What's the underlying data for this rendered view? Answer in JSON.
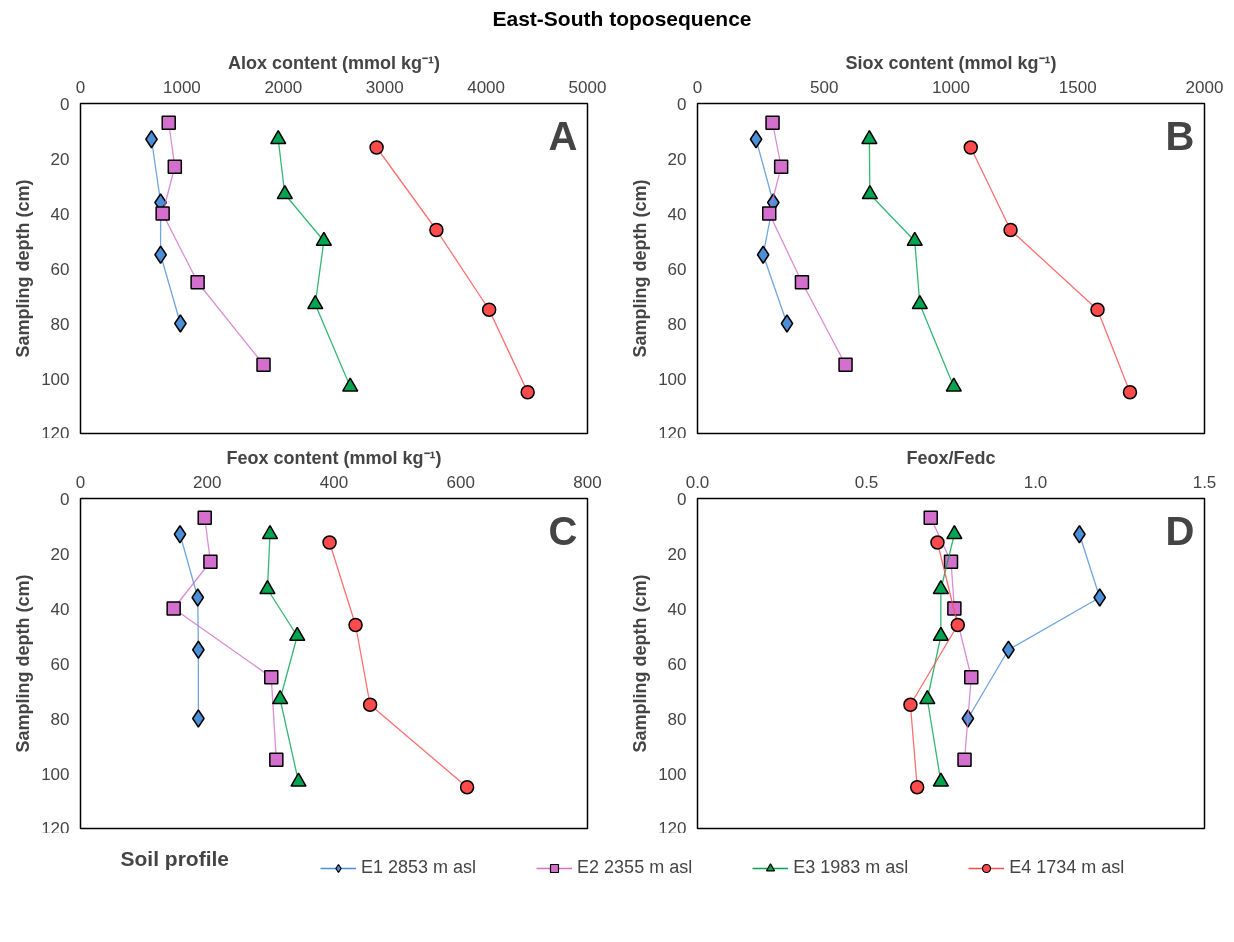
{
  "chart_data": [
    {
      "type": "line",
      "title": "East-South toposequence",
      "xlabel": "Alox content (mmol kg⁻¹)",
      "ylabel": "Sampling depth (cm)",
      "annotations": [
        "A"
      ],
      "legend": "bottom",
      "legend_title": "Soil profile",
      "xlim": [
        0,
        5000
      ],
      "xticks": [
        0,
        1000,
        2000,
        3000,
        4000,
        5000
      ],
      "ylim": [
        120,
        0
      ],
      "yticks": [
        0,
        20,
        40,
        60,
        80,
        100,
        120
      ],
      "grid": false,
      "series": [
        {
          "name": "E1 2853 m asl",
          "color": "#4a8fd8",
          "marker": "diamond",
          "x": [
            700,
            790,
            790,
            985
          ],
          "values": [
            13,
            36,
            55,
            80
          ]
        },
        {
          "name": "E2 2355 m asl",
          "color": "#d36fcc",
          "marker": "square",
          "x": [
            870,
            930,
            810,
            1155,
            1805
          ],
          "values": [
            7,
            23,
            40,
            65,
            95
          ]
        },
        {
          "name": "E3 1983 m asl",
          "color": "#00a550",
          "marker": "triangle",
          "x": [
            1950,
            2015,
            2400,
            2315,
            2660
          ],
          "values": [
            13,
            33,
            50,
            73,
            103
          ]
        },
        {
          "name": "E4 1734 m asl",
          "color": "#ff4b4b",
          "marker": "circle",
          "x": [
            2920,
            3510,
            4030,
            4410
          ],
          "values": [
            16,
            46,
            75,
            105
          ]
        }
      ]
    },
    {
      "type": "line",
      "xlabel": "Siox content (mmol kg⁻¹)",
      "ylabel": "Sampling depth (cm)",
      "annotations": [
        "B"
      ],
      "xlim": [
        0,
        2000
      ],
      "xticks": [
        0,
        500,
        1000,
        1500,
        2000
      ],
      "ylim": [
        120,
        0
      ],
      "yticks": [
        0,
        20,
        40,
        60,
        80,
        100,
        120
      ],
      "grid": false,
      "series": [
        {
          "color": "#4a8fd8",
          "marker": "diamond",
          "x": [
            231,
            299,
            259,
            353
          ],
          "values": [
            13,
            36,
            55,
            80
          ]
        },
        {
          "color": "#d36fcc",
          "marker": "square",
          "x": [
            296,
            330,
            283,
            412,
            584
          ],
          "values": [
            7,
            23,
            40,
            65,
            95
          ]
        },
        {
          "color": "#00a550",
          "marker": "triangle",
          "x": [
            678,
            680,
            857,
            877,
            1011
          ],
          "values": [
            13,
            33,
            50,
            73,
            103
          ]
        },
        {
          "color": "#ff4b4b",
          "marker": "circle",
          "x": [
            1078,
            1235,
            1578,
            1706
          ],
          "values": [
            16,
            46,
            75,
            105
          ]
        }
      ]
    },
    {
      "type": "line",
      "xlabel": "Feox content (mmol kg⁻¹)",
      "ylabel": "Sampling depth (cm)",
      "annotations": [
        "C"
      ],
      "xlim": [
        0,
        800
      ],
      "xticks": [
        0,
        200,
        400,
        600,
        800
      ],
      "ylim": [
        120,
        0
      ],
      "yticks": [
        0,
        20,
        40,
        60,
        80,
        100,
        120
      ],
      "grid": false,
      "series": [
        {
          "color": "#4a8fd8",
          "marker": "diamond",
          "x": [
            157,
            185,
            186,
            186
          ],
          "values": [
            13,
            36,
            55,
            80
          ]
        },
        {
          "color": "#d36fcc",
          "marker": "square",
          "x": [
            196,
            205,
            147,
            301,
            309
          ],
          "values": [
            7,
            23,
            40,
            65,
            95
          ]
        },
        {
          "color": "#00a550",
          "marker": "triangle",
          "x": [
            299,
            295,
            342,
            315,
            344
          ],
          "values": [
            13,
            33,
            50,
            73,
            103
          ]
        },
        {
          "color": "#ff4b4b",
          "marker": "circle",
          "x": [
            393,
            434,
            457,
            610
          ],
          "values": [
            16,
            46,
            75,
            105
          ]
        }
      ]
    },
    {
      "type": "line",
      "xlabel": "Feox/Fedc",
      "ylabel": "Sampling depth (cm)",
      "annotations": [
        "D"
      ],
      "xlim": [
        0,
        1.5
      ],
      "xticks": [
        {
          "value": 0,
          "label": "0.0"
        },
        0.5,
        {
          "value": 1,
          "label": "1.0"
        },
        1.5
      ],
      "ylim": [
        120,
        0
      ],
      "yticks": [
        0,
        20,
        40,
        60,
        80,
        100,
        120
      ],
      "grid": false,
      "series": [
        {
          "color": "#4a8fd8",
          "marker": "diamond",
          "x": [
            1.13,
            1.19,
            0.92,
            0.8
          ],
          "values": [
            13,
            36,
            55,
            80
          ]
        },
        {
          "color": "#d36fcc",
          "marker": "square",
          "x": [
            0.69,
            0.75,
            0.76,
            0.81,
            0.79
          ],
          "values": [
            7,
            23,
            40,
            65,
            95
          ]
        },
        {
          "color": "#00a550",
          "marker": "triangle",
          "x": [
            0.76,
            0.72,
            0.72,
            0.68,
            0.72
          ],
          "values": [
            13,
            33,
            50,
            73,
            103
          ]
        },
        {
          "color": "#ff4b4b",
          "marker": "circle",
          "x": [
            0.71,
            0.77,
            0.63,
            0.65
          ],
          "values": [
            16,
            46,
            75,
            105
          ]
        }
      ]
    }
  ]
}
